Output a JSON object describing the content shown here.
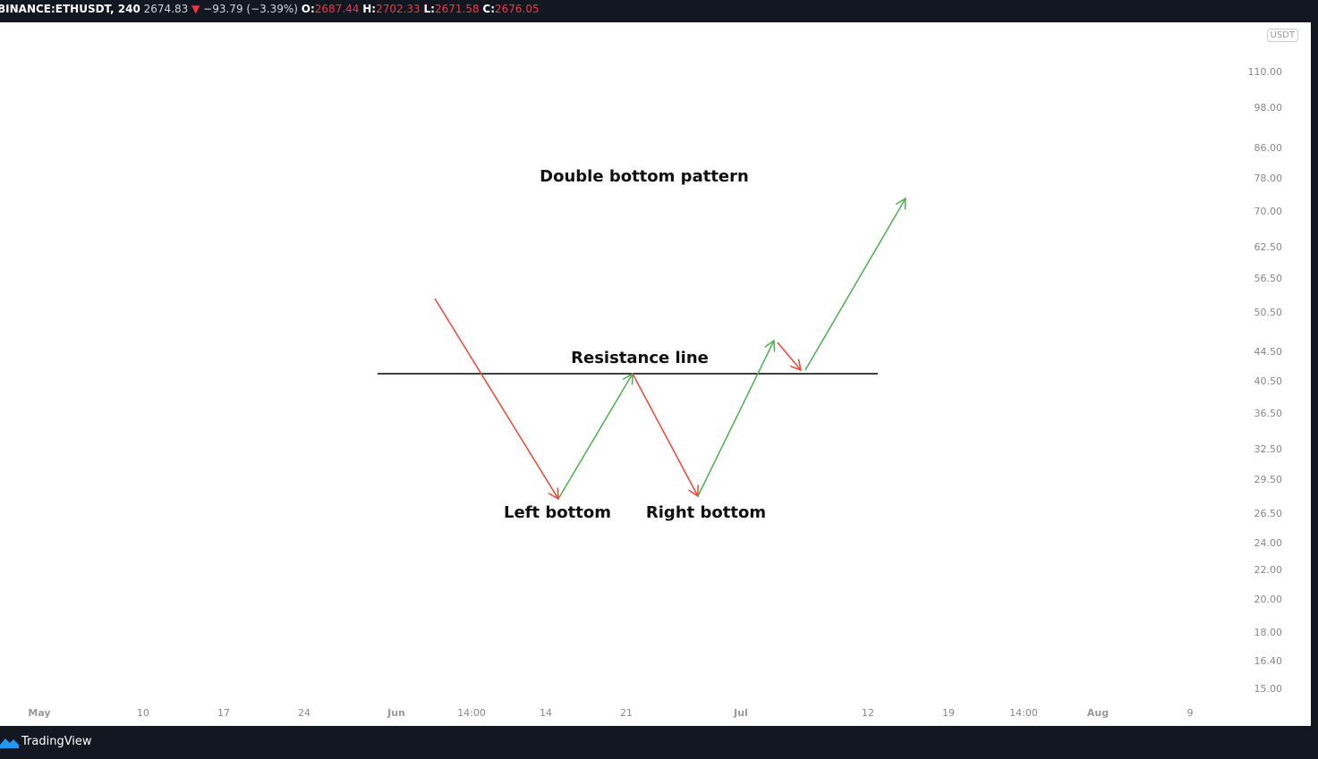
{
  "header": {
    "symbol": "BINANCE:ETHUSDT, 240",
    "last": "2674.83",
    "change": "−93.79 (−3.39%)",
    "open_label": "O:",
    "open": "2687.44",
    "high_label": "H:",
    "high": "2702.33",
    "low_label": "L:",
    "low": "2671.58",
    "close_label": "C:",
    "close": "2676.05",
    "change_color": "#f23645",
    "direction_icon": "triangle-down"
  },
  "price_axis": {
    "unit": "USDT",
    "labels": [
      "110.00",
      "98.00",
      "86.00",
      "78.00",
      "70.00",
      "62.50",
      "56.50",
      "50.50",
      "44.50",
      "40.50",
      "36.50",
      "32.50",
      "29.50",
      "26.50",
      "24.00",
      "22.00",
      "20.00",
      "18.00",
      "16.40",
      "15.00"
    ]
  },
  "time_axis": {
    "labels": [
      {
        "t": "May",
        "bold": true
      },
      {
        "t": "10"
      },
      {
        "t": "17"
      },
      {
        "t": "24"
      },
      {
        "t": "Jun",
        "bold": true
      },
      {
        "t": "14:00"
      },
      {
        "t": "14"
      },
      {
        "t": "21"
      },
      {
        "t": "Jul",
        "bold": true
      },
      {
        "t": "12"
      },
      {
        "t": "19"
      },
      {
        "t": "14:00"
      },
      {
        "t": "Aug",
        "bold": true
      },
      {
        "t": "9"
      }
    ]
  },
  "annotations": {
    "title": "Double bottom pattern",
    "resistance": "Resistance line",
    "left_bottom": "Left bottom",
    "right_bottom": "Right bottom"
  },
  "colors": {
    "up": "#4caf50",
    "down": "#f44336",
    "line": "#000000"
  },
  "footer": {
    "brand": "TradingView"
  }
}
